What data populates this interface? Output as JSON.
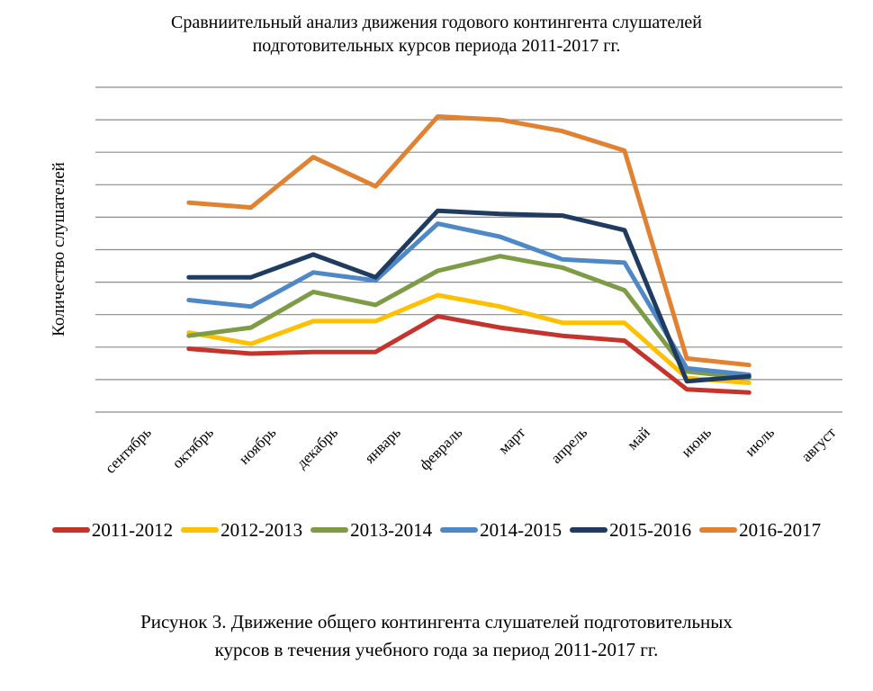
{
  "figure": {
    "title_line1": "Сравниительный анализ движения годового контингента слушателей",
    "title_line2": "подготовительных курсов периода 2011-2017 гг.",
    "caption_line1": "Рисунок 3. Движение общего контингента слушателей подготовительных",
    "caption_line2": "курсов в течения учебного года за период 2011-2017 гг."
  },
  "chart_data": {
    "type": "line",
    "title": "Сравниительный анализ движения годового контингента слушателей подготовительных курсов периода 2011-2017 гг.",
    "ylabel": "Количество слушателей",
    "xlabel": "",
    "categories": [
      "сентябрь",
      "октябрь",
      "ноябрь",
      "декабрь",
      "январь",
      "февраль",
      "март",
      "апрель",
      "май",
      "июнь",
      "июль",
      "август"
    ],
    "series": [
      {
        "name": "2011-2012",
        "color": "#C5342C",
        "values": [
          null,
          1.95,
          1.8,
          1.85,
          1.85,
          2.95,
          2.6,
          2.35,
          2.2,
          0.7,
          0.6,
          null
        ]
      },
      {
        "name": "2012-2013",
        "color": "#FFC000",
        "values": [
          null,
          2.45,
          2.1,
          2.8,
          2.8,
          3.6,
          3.25,
          2.75,
          2.75,
          1.05,
          0.9,
          null
        ]
      },
      {
        "name": "2013-2014",
        "color": "#7D9C45",
        "values": [
          null,
          2.35,
          2.6,
          3.7,
          3.3,
          4.35,
          4.8,
          4.45,
          3.75,
          1.25,
          1.05,
          null
        ]
      },
      {
        "name": "2014-2015",
        "color": "#4F88C6",
        "values": [
          null,
          3.45,
          3.25,
          4.3,
          4.05,
          5.8,
          5.4,
          4.7,
          4.6,
          1.35,
          1.15,
          null
        ]
      },
      {
        "name": "2015-2016",
        "color": "#1F3B60",
        "values": [
          null,
          4.15,
          4.15,
          4.85,
          4.15,
          6.2,
          6.1,
          6.05,
          5.6,
          0.95,
          1.1,
          null
        ]
      },
      {
        "name": "2016-2017",
        "color": "#E08232",
        "values": [
          null,
          6.45,
          6.3,
          7.85,
          6.95,
          9.1,
          9.0,
          8.65,
          8.05,
          1.65,
          1.45,
          null
        ]
      }
    ],
    "ylim": [
      0,
      10
    ],
    "y_units": "gridline intervals; y-axis has no numeric tick labels",
    "gridlines": {
      "horizontal": 11,
      "vertical": 0,
      "color": "#8C8C8C"
    },
    "legend_position": "bottom",
    "line_width": 5
  },
  "colors": {
    "background": "#FFFFFF",
    "text": "#000000"
  }
}
